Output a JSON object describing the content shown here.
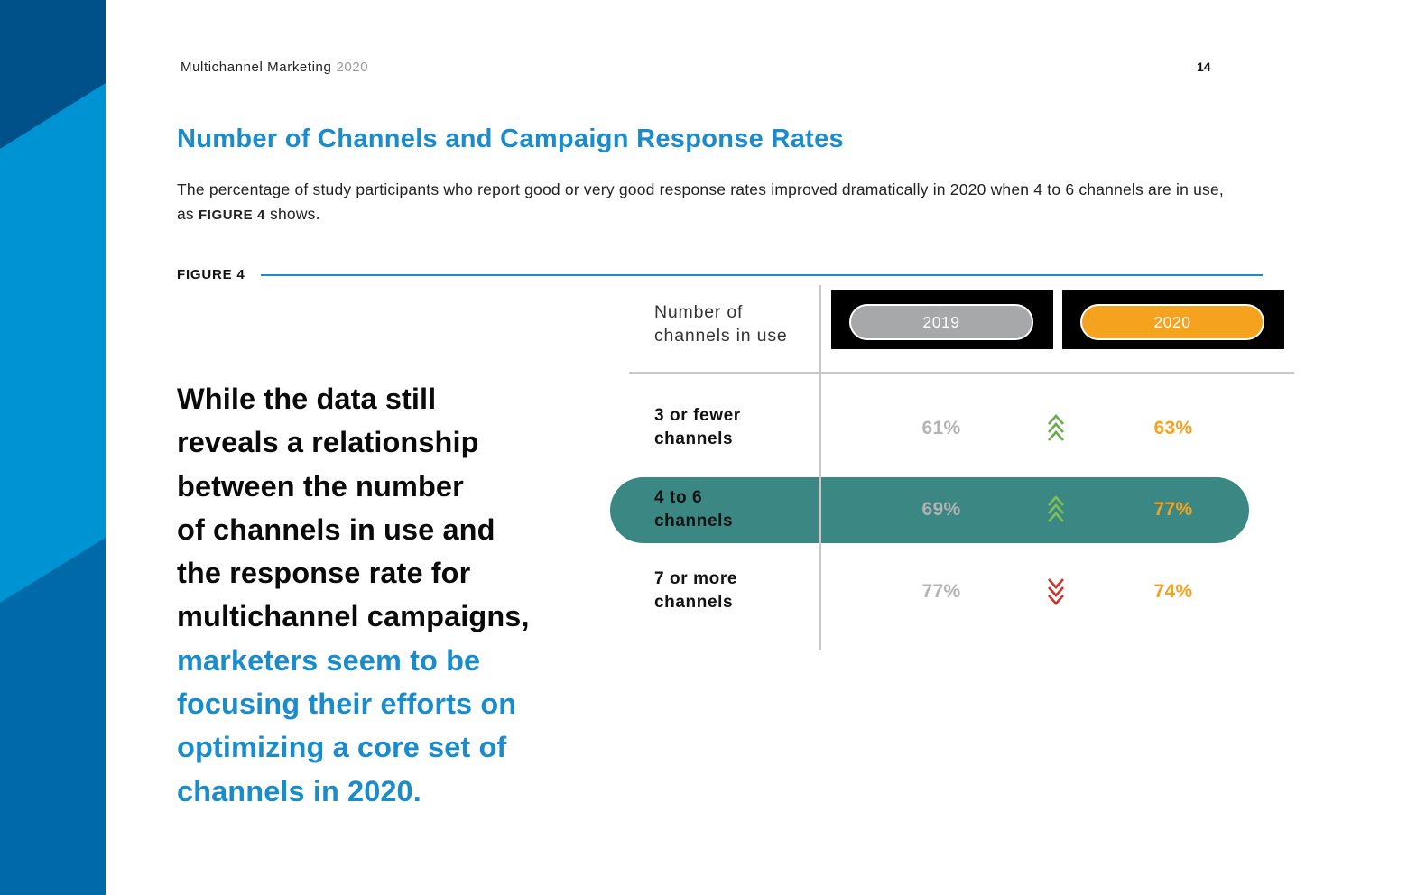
{
  "header": {
    "doc_title": "Multichannel Marketing",
    "doc_year": "2020",
    "page_number": "14"
  },
  "section": {
    "heading": "Number of Channels and Campaign Response Rates",
    "intro_before": "The percentage of study participants who report good or very good response rates improved dramatically in 2020 when 4 to 6 channels are in use, as ",
    "intro_ref": "FIGURE 4",
    "intro_after": " shows."
  },
  "figure": {
    "label": "FIGURE 4",
    "column_header_line1": "Number of",
    "column_header_line2": "channels in use",
    "year_2019": "2019",
    "year_2020": "2020",
    "rows": [
      {
        "label_line1": "3 or fewer",
        "label_line2": "channels",
        "v2019": "61%",
        "v2020": "63%",
        "trend": "up"
      },
      {
        "label_line1": "4 to 6",
        "label_line2": "channels",
        "v2019": "69%",
        "v2020": "77%",
        "trend": "up",
        "highlighted": true
      },
      {
        "label_line1": "7 or more",
        "label_line2": "channels",
        "v2019": "77%",
        "v2020": "74%",
        "trend": "down"
      }
    ]
  },
  "pull_quote": {
    "main_l1": "While the data still",
    "main_l2": "reveals a relationship",
    "main_l3": "between the number",
    "main_l4": "of channels in use and",
    "main_l5": "the response rate for",
    "main_l6": "multichannel campaigns,",
    "accent_l1": "marketers seem to be",
    "accent_l2": "focusing their efforts on",
    "accent_l3": "optimizing a core set of",
    "accent_l4": "channels in 2020."
  },
  "colors": {
    "brand_blue": "#1a8ccc",
    "highlight_teal": "#3b8784",
    "gray_2019": "#a7a8aa",
    "orange_2020": "#f5a31f",
    "arrow_up": "#6aab4f",
    "arrow_down": "#d0312d"
  }
}
